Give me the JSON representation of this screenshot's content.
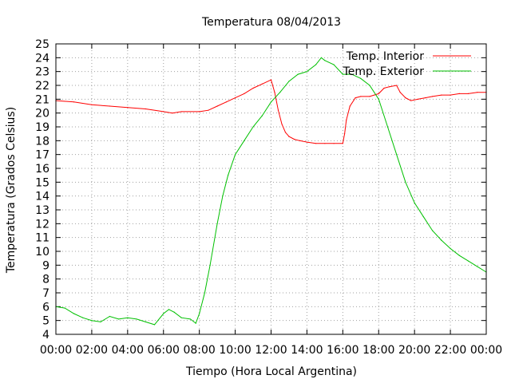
{
  "chart_data": {
    "type": "line",
    "title": "Temperatura 08/04/2013",
    "xlabel": "Tiempo (Hora Local Argentina)",
    "ylabel": "Temperatura (Grados Celsius)",
    "xlim": [
      0,
      24
    ],
    "ylim": [
      4,
      25
    ],
    "grid": true,
    "legend_position": "top-right",
    "x_ticks": [
      0,
      2,
      4,
      6,
      8,
      10,
      12,
      14,
      16,
      18,
      20,
      22,
      24
    ],
    "x_tick_labels": [
      "00:00",
      "02:00",
      "04:00",
      "06:00",
      "08:00",
      "10:00",
      "12:00",
      "14:00",
      "16:00",
      "18:00",
      "20:00",
      "22:00",
      "00:00"
    ],
    "y_ticks": [
      4,
      5,
      6,
      7,
      8,
      9,
      10,
      11,
      12,
      13,
      14,
      15,
      16,
      17,
      18,
      19,
      20,
      21,
      22,
      23,
      24,
      25
    ],
    "series": [
      {
        "name": "Temp. Interior",
        "color": "#ff0000",
        "x": [
          0,
          1,
          2,
          3,
          4,
          5,
          6,
          6.5,
          7,
          8,
          8.5,
          9,
          9.5,
          10,
          10.5,
          11,
          11.5,
          12,
          12.2,
          12.4,
          12.6,
          12.8,
          13,
          13.3,
          13.6,
          14,
          14.5,
          15,
          15.5,
          16,
          16.1,
          16.2,
          16.4,
          16.7,
          17,
          17.5,
          18,
          18.3,
          18.6,
          19,
          19.2,
          19.5,
          19.8,
          20.2,
          20.6,
          21,
          21.5,
          22,
          22.5,
          23,
          23.5,
          24
        ],
        "y": [
          20.9,
          20.8,
          20.6,
          20.5,
          20.4,
          20.3,
          20.1,
          20.0,
          20.1,
          20.1,
          20.2,
          20.5,
          20.8,
          21.1,
          21.4,
          21.8,
          22.1,
          22.4,
          21.5,
          20.2,
          19.2,
          18.6,
          18.3,
          18.1,
          18.0,
          17.9,
          17.8,
          17.8,
          17.8,
          17.8,
          18.5,
          19.5,
          20.5,
          21.1,
          21.2,
          21.2,
          21.4,
          21.8,
          21.9,
          22.0,
          21.5,
          21.1,
          20.9,
          21.0,
          21.1,
          21.2,
          21.3,
          21.3,
          21.4,
          21.4,
          21.5,
          21.5
        ],
        "values": [
          20.9,
          20.8,
          20.6,
          20.5,
          20.4,
          20.3,
          20.1,
          20.0,
          20.1,
          20.1,
          20.2,
          20.5,
          20.8,
          21.1,
          21.4,
          21.8,
          22.1,
          22.4,
          21.5,
          20.2,
          19.2,
          18.6,
          18.3,
          18.1,
          18.0,
          17.9,
          17.8,
          17.8,
          17.8,
          17.8,
          18.5,
          19.5,
          20.5,
          21.1,
          21.2,
          21.2,
          21.4,
          21.8,
          21.9,
          22.0,
          21.5,
          21.1,
          20.9,
          21.0,
          21.1,
          21.2,
          21.3,
          21.3,
          21.4,
          21.4,
          21.5,
          21.5
        ]
      },
      {
        "name": "Temp. Exterior",
        "color": "#00c000",
        "x": [
          0,
          0.5,
          1,
          1.5,
          2,
          2.5,
          3,
          3.5,
          4,
          4.5,
          5,
          5.5,
          6,
          6.3,
          6.6,
          7,
          7.5,
          7.8,
          8,
          8.3,
          8.6,
          9,
          9.3,
          9.6,
          10,
          10.5,
          11,
          11.5,
          12,
          12.5,
          13,
          13.5,
          14,
          14.5,
          14.8,
          15,
          15.5,
          16,
          16.5,
          17,
          17.5,
          18,
          18.5,
          19,
          19.5,
          20,
          20.5,
          21,
          21.5,
          22,
          22.5,
          23,
          23.5,
          24
        ],
        "y": [
          6.0,
          5.9,
          5.5,
          5.2,
          5.0,
          4.9,
          5.3,
          5.1,
          5.2,
          5.1,
          4.9,
          4.7,
          5.5,
          5.8,
          5.6,
          5.2,
          5.1,
          4.8,
          5.5,
          7.0,
          9.0,
          12.0,
          14.0,
          15.5,
          17.0,
          18.0,
          19.0,
          19.8,
          20.8,
          21.5,
          22.3,
          22.8,
          23.0,
          23.5,
          24.0,
          23.8,
          23.5,
          22.8,
          22.8,
          22.5,
          22.0,
          21.0,
          19.0,
          17.0,
          15.0,
          13.5,
          12.5,
          11.5,
          10.8,
          10.2,
          9.7,
          9.3,
          8.9,
          8.5
        ],
        "values": [
          6.0,
          5.9,
          5.5,
          5.2,
          5.0,
          4.9,
          5.3,
          5.1,
          5.2,
          5.1,
          4.9,
          4.7,
          5.5,
          5.8,
          5.6,
          5.2,
          5.1,
          4.8,
          5.5,
          7.0,
          9.0,
          12.0,
          14.0,
          15.5,
          17.0,
          18.0,
          19.0,
          19.8,
          20.8,
          21.5,
          22.3,
          22.8,
          23.0,
          23.5,
          24.0,
          23.8,
          23.5,
          22.8,
          22.8,
          22.5,
          22.0,
          21.0,
          19.0,
          17.0,
          15.0,
          13.5,
          12.5,
          11.5,
          10.8,
          10.2,
          9.7,
          9.3,
          8.9,
          8.5
        ]
      }
    ]
  }
}
